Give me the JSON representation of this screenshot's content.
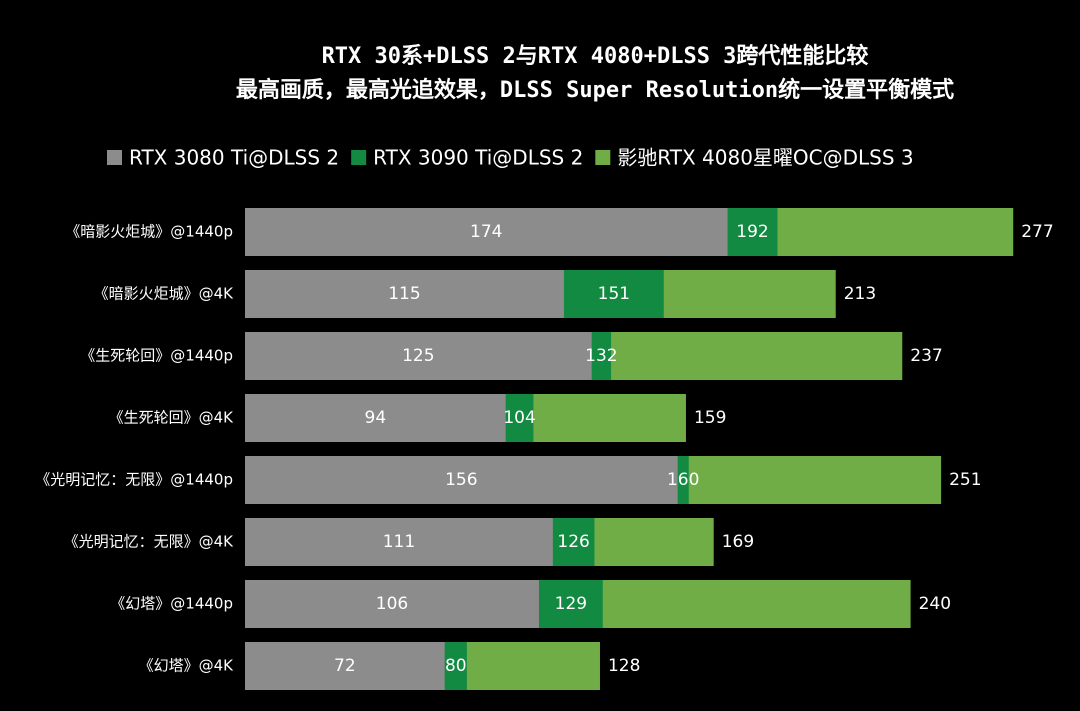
{
  "chart_data": {
    "type": "bar",
    "orientation": "horizontal",
    "barmode": "overlay",
    "title": "RTX 30系+DLSS 2与RTX 4080+DLSS 3跨代性能比较",
    "subtitle": "最高画质，最高光追效果，DLSS Super Resolution统一设置平衡模式",
    "categories": [
      "《暗影火炬城》@1440p",
      "《暗影火炬城》@4K",
      "《生死轮回》@1440p",
      "《生死轮回》@4K",
      "《光明记忆：无限》@1440p",
      "《光明记忆：无限》@4K",
      "《幻塔》@1440p",
      "《幻塔》@4K"
    ],
    "series": [
      {
        "name": "RTX 3080 Ti@DLSS 2",
        "color": "#8c8c8c",
        "values": [
          174,
          115,
          125,
          94,
          156,
          111,
          106,
          72
        ]
      },
      {
        "name": "RTX 3090 Ti@DLSS 2",
        "color": "#138a42",
        "values": [
          192,
          151,
          132,
          104,
          160,
          126,
          129,
          80
        ]
      },
      {
        "name": "影驰RTX 4080星曜OC@DLSS 3",
        "color": "#70ad47",
        "values": [
          277,
          213,
          237,
          159,
          251,
          169,
          240,
          128
        ]
      }
    ],
    "xlim": [
      0,
      300
    ],
    "legend": "top"
  }
}
